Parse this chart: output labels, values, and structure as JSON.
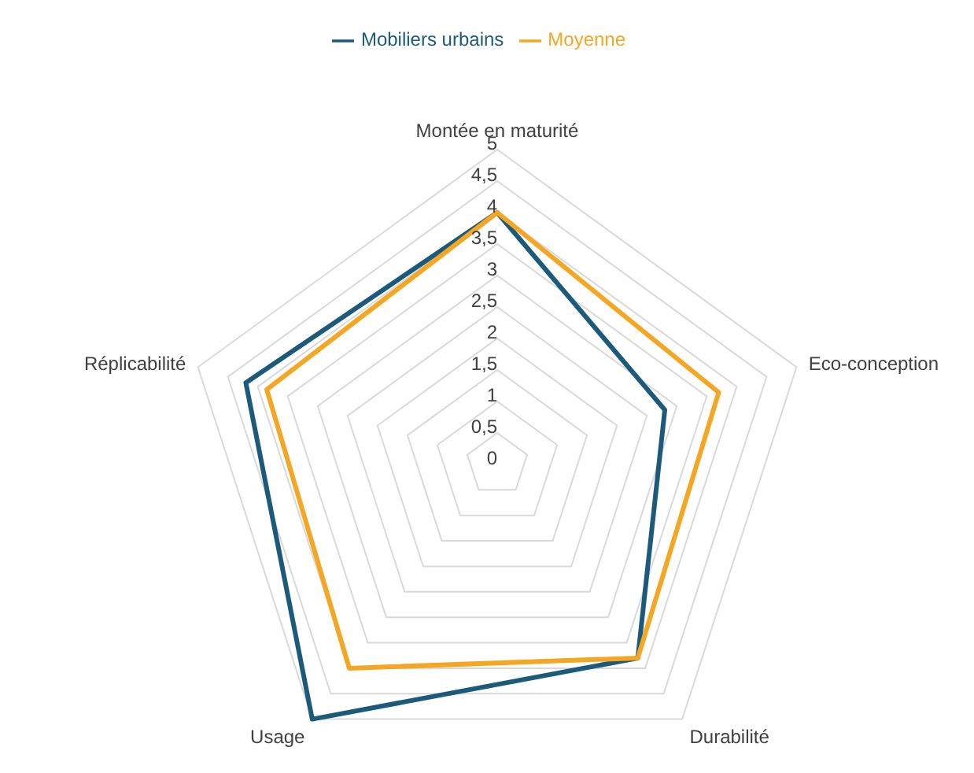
{
  "chart_data": {
    "type": "radar",
    "categories": [
      "Montée en maturité",
      "Eco-conception",
      "Durabilité",
      "Usage",
      "Réplicabilité"
    ],
    "series": [
      {
        "name": "Mobiliers urbains",
        "color": "#1b5a7a",
        "values": [
          4,
          2.8,
          3.8,
          5,
          4.2
        ]
      },
      {
        "name": "Moyenne",
        "color": "#f5a623",
        "values": [
          4,
          3.7,
          3.8,
          4,
          3.85
        ]
      }
    ],
    "ylim": [
      0,
      5
    ],
    "yticks": [
      0,
      {
        "value": 0.5,
        "label": "0,5"
      },
      1,
      {
        "value": 1.5,
        "label": "1,5"
      },
      2,
      {
        "value": 2.5,
        "label": "2,5"
      },
      3,
      {
        "value": 3.5,
        "label": "3,5"
      },
      4,
      {
        "value": 4.5,
        "label": "4,5"
      },
      5
    ],
    "grid": true,
    "legend": "top",
    "marker": "none"
  }
}
